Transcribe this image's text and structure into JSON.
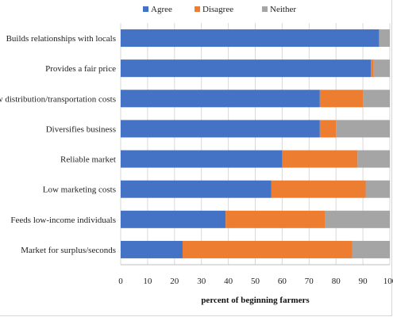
{
  "chart_data": {
    "type": "bar",
    "orientation": "horizontal",
    "stacked": true,
    "categories": [
      "Builds relationships with locals",
      "Provides a fair price",
      "Low distribution/transportation costs",
      "Diversifies business",
      "Reliable market",
      "Low marketing costs",
      "Feeds low-income individuals",
      "Market for surplus/seconds"
    ],
    "series": [
      {
        "name": "Agree",
        "color": "#4472C4",
        "values": [
          96,
          93,
          74,
          74,
          60,
          56,
          39,
          23
        ]
      },
      {
        "name": "Disagree",
        "color": "#ED7D31",
        "values": [
          0,
          1,
          16,
          6,
          28,
          35,
          37,
          63
        ]
      },
      {
        "name": "Neither",
        "color": "#A5A5A5",
        "values": [
          4,
          6,
          10,
          20,
          12,
          9,
          24,
          14
        ]
      }
    ],
    "xlabel": "percent of beginning farmers",
    "xlim": [
      0,
      100
    ],
    "xticks": [
      0,
      10,
      20,
      30,
      40,
      50,
      60,
      70,
      80,
      90,
      100
    ],
    "grid": "vertical",
    "legend_position": "top"
  }
}
